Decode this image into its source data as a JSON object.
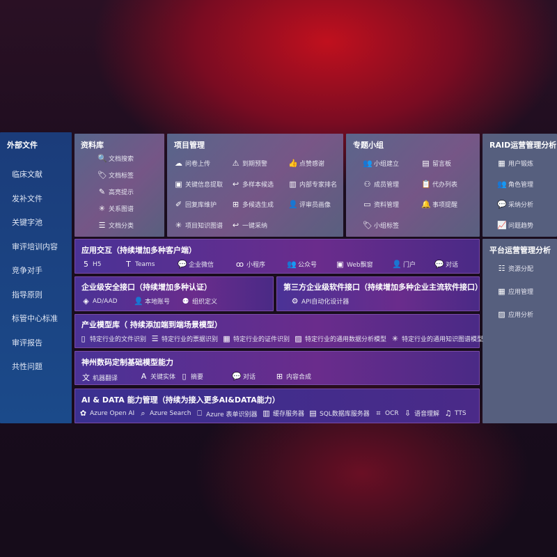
{
  "sidebar": {
    "title": "外部文件",
    "items": [
      "临床文献",
      "发补文件",
      "关键字池",
      "审评培训内容",
      "竞争对手",
      "指导原则",
      "标管中心标准",
      "审评报告",
      "共性问题"
    ]
  },
  "library": {
    "title": "资料库",
    "items": [
      {
        "icon": "file-search",
        "label": "文档搜索"
      },
      {
        "icon": "tag",
        "label": "文档标签"
      },
      {
        "icon": "pen",
        "label": "高亮提示"
      },
      {
        "icon": "graph",
        "label": "关系图谱"
      },
      {
        "icon": "doc-classify",
        "label": "文档分类"
      }
    ]
  },
  "project": {
    "title": "项目管理",
    "items": [
      {
        "icon": "cloud-upload",
        "label": "问卷上传"
      },
      {
        "icon": "alarm",
        "label": "到期预警"
      },
      {
        "icon": "thumbs-up",
        "label": "点赞感谢"
      },
      {
        "icon": "window",
        "label": "关键信息提取"
      },
      {
        "icon": "reply",
        "label": "多样本候选"
      },
      {
        "icon": "ranking",
        "label": "内部专家排名"
      },
      {
        "icon": "edit",
        "label": "回复库维护"
      },
      {
        "icon": "puzzle",
        "label": "多候选生成"
      },
      {
        "icon": "user",
        "label": "评审员画像"
      },
      {
        "icon": "graph",
        "label": "项目知识图谱"
      },
      {
        "icon": "reply",
        "label": "一键采纳"
      }
    ]
  },
  "group": {
    "title": "专题小组",
    "items": [
      {
        "icon": "users",
        "label": "小组建立"
      },
      {
        "icon": "bbs",
        "label": "留言板"
      },
      {
        "icon": "user-add",
        "label": "成员管理"
      },
      {
        "icon": "clipboard",
        "label": "代办列表"
      },
      {
        "icon": "folder",
        "label": "资料管理"
      },
      {
        "icon": "bell",
        "label": "事项提醒"
      },
      {
        "icon": "tag",
        "label": "小组标签"
      }
    ]
  },
  "raid": {
    "title": "RAID运营管理分析",
    "items": [
      {
        "icon": "id-card",
        "label": "用户锻炼"
      },
      {
        "icon": "users",
        "label": "角色管理"
      },
      {
        "icon": "qa",
        "label": "采纳分析"
      },
      {
        "icon": "trend",
        "label": "问题趋势"
      }
    ]
  },
  "platform": {
    "title": "平台运营管理分析",
    "items": [
      {
        "icon": "checklist",
        "label": "资源分配"
      },
      {
        "icon": "apps",
        "label": "应用管理"
      },
      {
        "icon": "chart",
        "label": "应用分析"
      }
    ]
  },
  "app": {
    "title": "应用交互（持续增加多种客户端）",
    "items": [
      {
        "icon": "html5",
        "label": "H5"
      },
      {
        "icon": "teams",
        "label": "Teams"
      },
      {
        "icon": "wechat",
        "label": "企业微信"
      },
      {
        "icon": "mini-program",
        "label": "小程序"
      },
      {
        "icon": "users",
        "label": "公众号"
      },
      {
        "icon": "window",
        "label": "Web飘窗"
      },
      {
        "icon": "user",
        "label": "门户"
      },
      {
        "icon": "chat",
        "label": "对话"
      }
    ]
  },
  "security": {
    "title": "企业级安全接口（持续增加多种认证）",
    "items": [
      {
        "icon": "diamond",
        "label": "AD/AAD"
      },
      {
        "icon": "user",
        "label": "本地账号"
      },
      {
        "icon": "org",
        "label": "组织定义"
      }
    ]
  },
  "third": {
    "title": "第三方企业级软件接口（持续增加多种企业主流软件接口）",
    "items": [
      {
        "icon": "gear",
        "label": "API自动化设计器"
      }
    ]
  },
  "industry": {
    "title": "产业模型库（ 持续添加端到端场景模型）",
    "items": [
      {
        "icon": "file",
        "label": "特定行业的文件识别"
      },
      {
        "icon": "receipt",
        "label": "特定行业的票据识别"
      },
      {
        "icon": "id-card",
        "label": "特定行业的证件识别"
      },
      {
        "icon": "chart",
        "label": "特定行业的通用数据分析模型"
      },
      {
        "icon": "graph",
        "label": "特定行业的通用知识图谱模型"
      }
    ]
  },
  "base": {
    "title": "神州数码定制基础模型能力",
    "items": [
      {
        "icon": "translate",
        "label": "机器翻译"
      },
      {
        "icon": "entity",
        "label": "关键实体"
      },
      {
        "icon": "doc",
        "label": "摘要"
      },
      {
        "icon": "chat",
        "label": "对话"
      },
      {
        "icon": "puzzle",
        "label": "内容合成"
      }
    ]
  },
  "ai": {
    "title": "AI & DATA 能力管理（持续为接入更多AI&DATA能力）",
    "items": [
      {
        "icon": "openai",
        "label": "Azure Open AI"
      },
      {
        "icon": "search",
        "label": "Azure Search"
      },
      {
        "icon": "form",
        "label": "Azure 表单识别器"
      },
      {
        "icon": "cache",
        "label": "缓存服务器"
      },
      {
        "icon": "database",
        "label": "SQL数据库服务器"
      },
      {
        "icon": "ocr",
        "label": "OCR"
      },
      {
        "icon": "speech",
        "label": "语音理解"
      },
      {
        "icon": "tts",
        "label": "TTS"
      }
    ]
  }
}
